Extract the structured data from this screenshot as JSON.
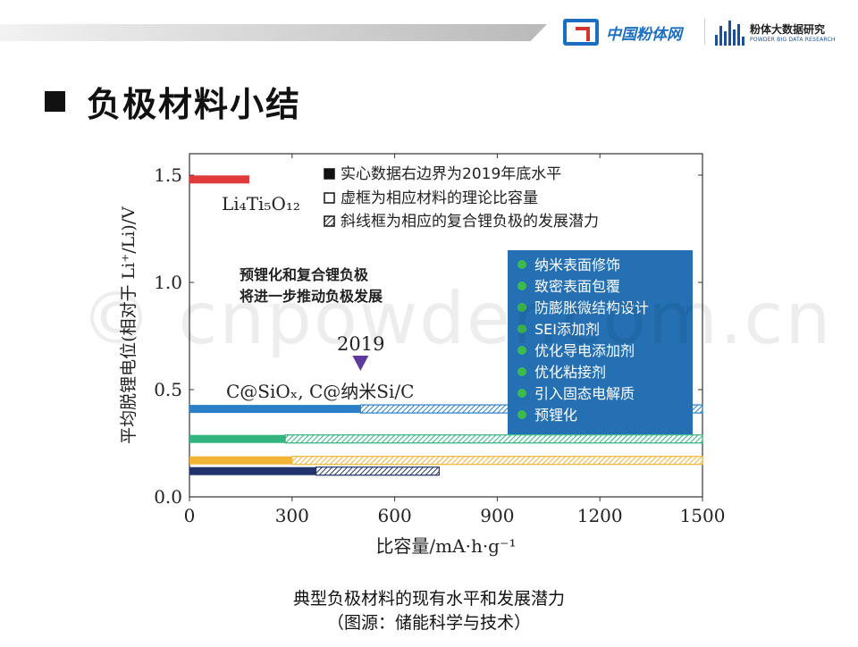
{
  "header": {
    "logo1_text": "中国粉体网",
    "logo2_text": "粉体大数据研究",
    "logo2_sub": "POWDER BIG DATA RESEARCH"
  },
  "slide": {
    "title": "负极材料小结",
    "watermark": "© cnpowder.com.cn",
    "caption_line1": "典型负极材料的现有水平和发展潜力",
    "caption_line2": "（图源：储能科学与技术）"
  },
  "chart_data": {
    "type": "bar",
    "orientation": "horizontal-range",
    "xlabel": "比容量/mA·h·g⁻¹",
    "ylabel": "平均脱锂电位(相对于 Li⁺/Li)/V",
    "xlim": [
      0,
      1500
    ],
    "ylim": [
      0,
      1.6
    ],
    "xticks": [
      "0",
      "300",
      "600",
      "900",
      "1200",
      "1500"
    ],
    "yticks": [
      "0.0",
      "0.5",
      "1.0",
      "1.5"
    ],
    "legend_position": "top-right",
    "legend": [
      {
        "marker": "solid",
        "label": "实心数据右边界为2019年底水平"
      },
      {
        "marker": "hollow",
        "label": "虚框为相应材料的理论比容量"
      },
      {
        "marker": "hatched",
        "label": "斜线框为相应的复合锂负极的发展潜力"
      }
    ],
    "bars": [
      {
        "y": 1.48,
        "x_solid": [
          0,
          175
        ],
        "x_frame": null,
        "color": "#e03a3a"
      },
      {
        "y": 0.41,
        "x_solid": [
          0,
          500
        ],
        "x_frame": [
          500,
          1500
        ],
        "color": "#2a7fc7"
      },
      {
        "y": 0.27,
        "x_solid": [
          0,
          280
        ],
        "x_frame": [
          280,
          1500
        ],
        "color": "#33b37e"
      },
      {
        "y": 0.17,
        "x_solid": [
          0,
          300
        ],
        "x_frame": [
          300,
          1500
        ],
        "color": "#f3b436"
      },
      {
        "y": 0.12,
        "x_solid": [
          0,
          370
        ],
        "x_frame": [
          370,
          730
        ],
        "color": "#22336b"
      }
    ],
    "annotations": {
      "lto_label": "Li₄Ti₅O₁₂",
      "marker_year": "2019",
      "marker_x": 500,
      "silicon_label": "C@SiOₓ, C@纳米Si/C",
      "bold_note_line1": "预锂化和复合锂负极",
      "bold_note_line2": "将进一步推动负极发展"
    },
    "strategy_box": {
      "items": [
        "纳米表面修饰",
        "致密表面包覆",
        "防膨胀微结构设计",
        "SEI添加剂",
        "优化导电添加剂",
        "优化粘接剂",
        "引入固态电解质",
        "预锂化"
      ],
      "bg_color": "#2470b3",
      "bullet_color": "#3dbb4e"
    }
  }
}
